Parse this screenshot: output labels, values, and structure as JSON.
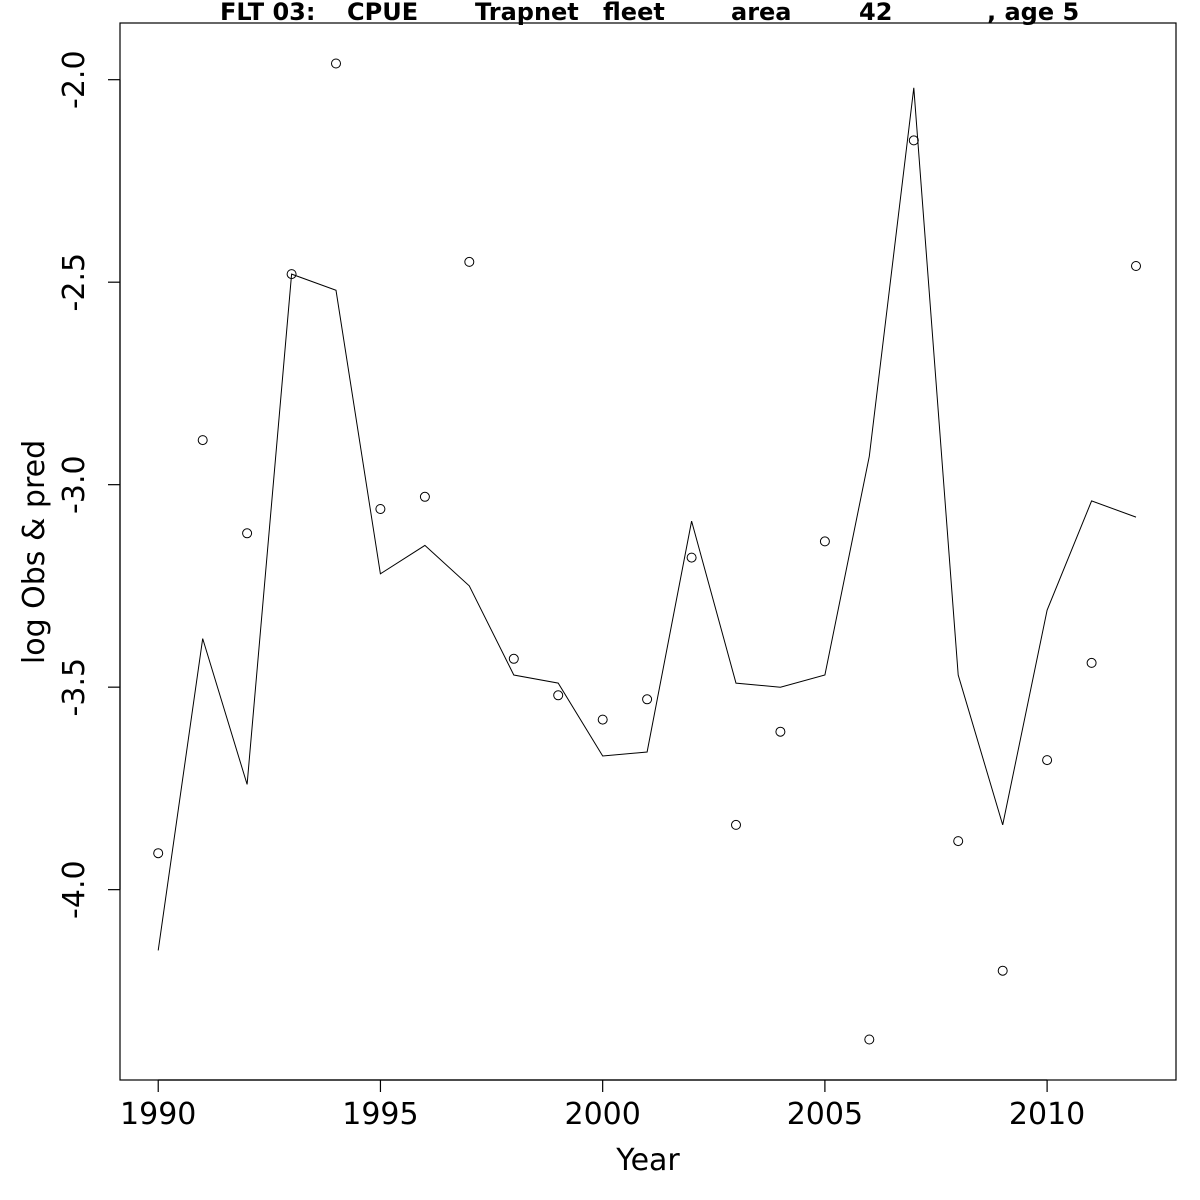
{
  "chart_data": {
    "type": "line",
    "title_parts": [
      "FLT 03:",
      "CPUE",
      "Trapnet",
      "fleet",
      "area",
      "42",
      ", age 5"
    ],
    "xlabel": "Year",
    "ylabel": "log Obs & pred",
    "xlim": [
      1989.14,
      2012.9
    ],
    "ylim": [
      -4.47,
      -1.86
    ],
    "x_ticks": [
      1990,
      1995,
      2000,
      2005,
      2010
    ],
    "x_tick_labels": [
      "1990",
      "1995",
      "2000",
      "2005",
      "2010"
    ],
    "y_ticks": [
      -4.0,
      -3.5,
      -3.0,
      -2.5,
      -2.0
    ],
    "y_tick_labels": [
      "-4.0",
      "-3.5",
      "-3.0",
      "-2.5",
      "-2.0"
    ],
    "grid": false,
    "series": [
      {
        "kind": "points",
        "marker": "open-circle",
        "x": [
          1990,
          1991,
          1992,
          1993,
          1994,
          1995,
          1996,
          1997,
          1998,
          1999,
          2000,
          2001,
          2002,
          2003,
          2004,
          2005,
          2006,
          2007,
          2008,
          2009,
          2010,
          2011,
          2012
        ],
        "y": [
          -3.91,
          -2.89,
          -3.12,
          -2.48,
          -1.96,
          -3.06,
          -3.03,
          -2.45,
          -3.43,
          -3.52,
          -3.58,
          -3.53,
          -3.18,
          -3.84,
          -3.61,
          -3.14,
          -4.37,
          -2.15,
          -3.88,
          -4.2,
          -3.68,
          -3.44,
          -2.46
        ]
      },
      {
        "kind": "line",
        "x": [
          1990,
          1991,
          1992,
          1993,
          1994,
          1995,
          1996,
          1997,
          1998,
          1999,
          2000,
          2001,
          2002,
          2003,
          2004,
          2005,
          2006,
          2007,
          2008,
          2009,
          2010,
          2011,
          2012
        ],
        "y": [
          -4.15,
          -3.38,
          -3.74,
          -2.48,
          -2.52,
          -3.22,
          -3.15,
          -3.25,
          -3.47,
          -3.49,
          -3.67,
          -3.66,
          -3.09,
          -3.49,
          -3.5,
          -3.47,
          -2.93,
          -2.02,
          -3.47,
          -3.84,
          -3.31,
          -3.04,
          -3.08
        ]
      }
    ]
  }
}
